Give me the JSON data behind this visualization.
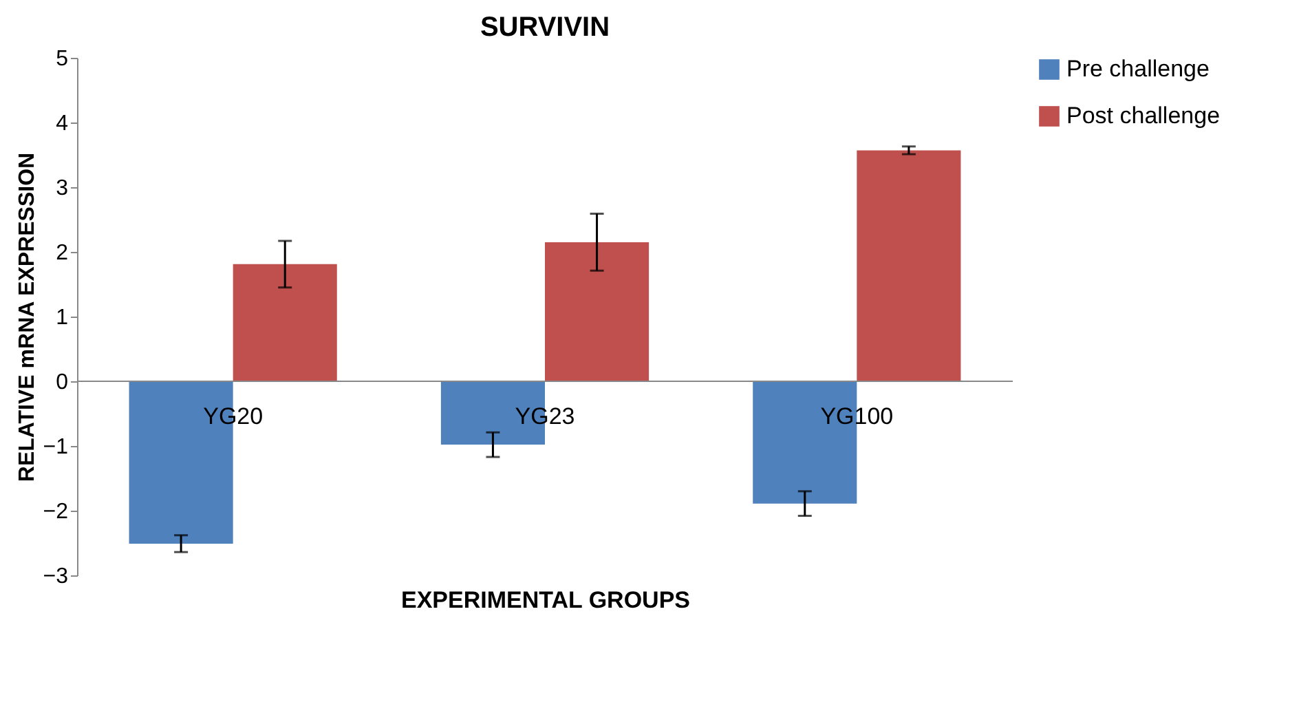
{
  "chart_data": {
    "type": "bar",
    "title": "SURVIVIN",
    "xlabel": "EXPERIMENTAL GROUPS",
    "ylabel": "RELATIVE mRNA EXPRESSION",
    "categories": [
      "YG20",
      "YG23",
      "YG100"
    ],
    "series": [
      {
        "name": "Pre challenge",
        "color": "#4f81bd",
        "values": [
          -2.51,
          -0.98,
          -1.89
        ],
        "errors": [
          0.13,
          0.19,
          0.19
        ]
      },
      {
        "name": "Post challenge",
        "color": "#c0504d",
        "values": [
          1.81,
          2.15,
          3.57
        ],
        "errors": [
          0.36,
          0.44,
          0.06
        ]
      }
    ],
    "ylim": [
      -3,
      5
    ],
    "yticks": [
      -3,
      -2,
      -1,
      0,
      1,
      2,
      3,
      4,
      5
    ],
    "grid": false,
    "legend": "top right"
  }
}
